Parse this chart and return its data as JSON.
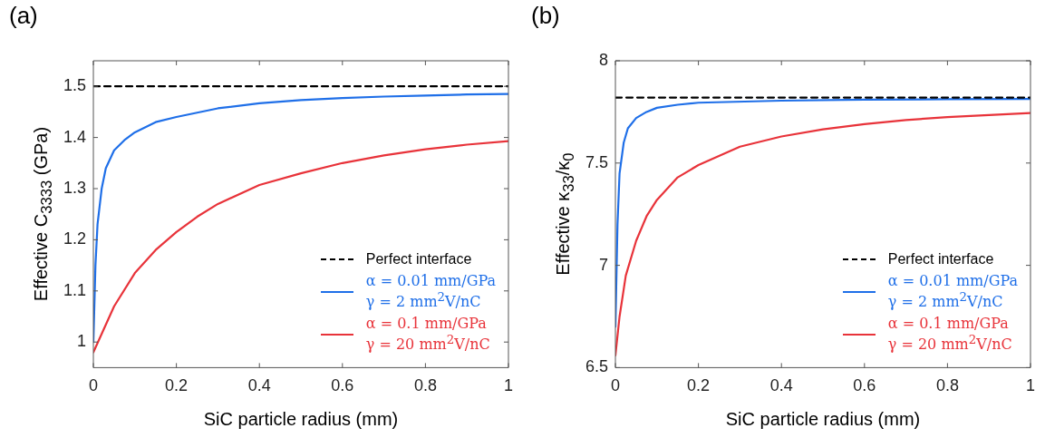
{
  "chart_data": [
    {
      "type": "line",
      "title": "(a)",
      "xlabel": "SiC particle radius (mm)",
      "ylabel": "Effective C$_{3333}$ (GPa)",
      "xlim": [
        0,
        1
      ],
      "xticks": [
        0,
        0.2,
        0.4,
        0.6,
        0.8,
        1
      ],
      "ylim": [
        0.95,
        1.55
      ],
      "yticks": [
        1,
        1.1,
        1.2,
        1.3,
        1.4,
        1.5
      ],
      "grid": false,
      "legend": "bottom right",
      "marker": "none",
      "series": [
        {
          "name": "Perfect interface",
          "color": "#000000",
          "line_style": "dashed",
          "x": [
            0,
            1
          ],
          "values": [
            1.5,
            1.5
          ]
        },
        {
          "name": "α = 0.01 mm/GPa\nγ = 2 mm$^{2}$V/nC",
          "color": "#1f6fe8",
          "line_style": "solid",
          "x": [
            0,
            0.005,
            0.01,
            0.02,
            0.03,
            0.05,
            0.075,
            0.1,
            0.15,
            0.2,
            0.3,
            0.4,
            0.5,
            0.6,
            0.7,
            0.8,
            0.9,
            1
          ],
          "values": [
            1.0,
            1.15,
            1.23,
            1.3,
            1.34,
            1.375,
            1.395,
            1.41,
            1.43,
            1.44,
            1.457,
            1.467,
            1.473,
            1.477,
            1.48,
            1.482,
            1.484,
            1.485
          ]
        },
        {
          "name": "α = 0.1 mm/GPa\nγ = 20 mm$^{2}$V/nC",
          "color": "#e8333a",
          "line_style": "solid",
          "x": [
            0,
            0.05,
            0.1,
            0.15,
            0.2,
            0.25,
            0.3,
            0.4,
            0.5,
            0.6,
            0.7,
            0.8,
            0.9,
            1
          ],
          "values": [
            0.98,
            1.07,
            1.135,
            1.18,
            1.215,
            1.245,
            1.27,
            1.307,
            1.33,
            1.35,
            1.365,
            1.377,
            1.386,
            1.393
          ]
        }
      ]
    },
    {
      "type": "line",
      "title": "(b)",
      "xlabel": "SiC particle radius (mm)",
      "ylabel": "Effective κ$_{33}$/κ$_{0}$",
      "xlim": [
        0,
        1
      ],
      "xticks": [
        0,
        0.2,
        0.4,
        0.6,
        0.8,
        1
      ],
      "ylim": [
        6.5,
        8
      ],
      "yticks": [
        6.5,
        7,
        7.5,
        8
      ],
      "grid": false,
      "legend": "bottom right",
      "marker": "none",
      "series": [
        {
          "name": "Perfect interface",
          "color": "#000000",
          "line_style": "dashed",
          "x": [
            0,
            1
          ],
          "values": [
            7.82,
            7.82
          ]
        },
        {
          "name": "α = 0.01 mm/GPa\nγ = 2 mm$^{2}$V/nC",
          "color": "#1f6fe8",
          "line_style": "solid",
          "x": [
            0,
            0.005,
            0.01,
            0.02,
            0.03,
            0.05,
            0.075,
            0.1,
            0.15,
            0.2,
            0.4,
            0.6,
            0.8,
            1
          ],
          "values": [
            6.7,
            7.2,
            7.45,
            7.6,
            7.67,
            7.72,
            7.75,
            7.77,
            7.785,
            7.795,
            7.805,
            7.81,
            7.812,
            7.813
          ]
        },
        {
          "name": "α = 0.1 mm/GPa\nγ = 20 mm$^{2}$V/nC",
          "color": "#e8333a",
          "line_style": "solid",
          "x": [
            0,
            0.01,
            0.025,
            0.05,
            0.075,
            0.1,
            0.15,
            0.2,
            0.3,
            0.4,
            0.5,
            0.6,
            0.7,
            0.8,
            0.9,
            1
          ],
          "values": [
            6.56,
            6.75,
            6.95,
            7.12,
            7.24,
            7.32,
            7.43,
            7.49,
            7.58,
            7.63,
            7.665,
            7.69,
            7.71,
            7.725,
            7.735,
            7.745
          ]
        }
      ]
    }
  ]
}
